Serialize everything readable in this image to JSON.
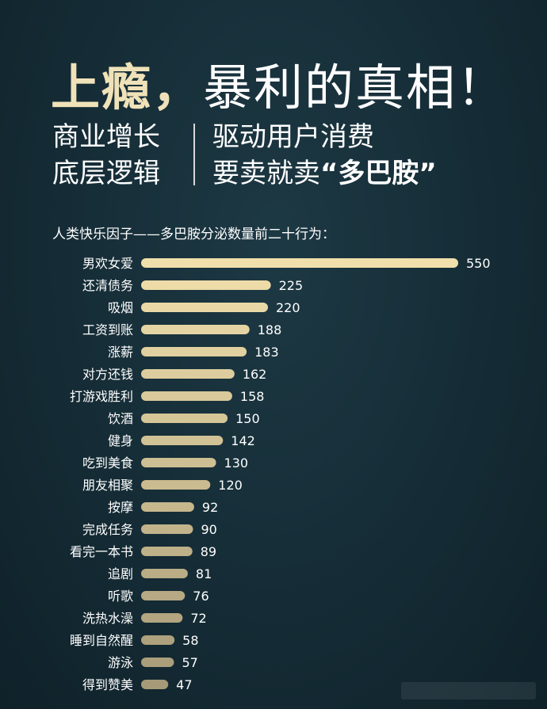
{
  "header": {
    "title_main": "上瘾，",
    "title_rest": "暴利的真相！",
    "subtitle_left_1": "商业增长",
    "subtitle_left_2": "底层逻辑",
    "subtitle_right_1": "驱动用户消费",
    "subtitle_right_2_prefix": "要卖就卖",
    "subtitle_right_2_highlight": "“多巴胺”",
    "caption": "人类快乐因子——多巴胺分泌数量前二十行为："
  },
  "chart_data": {
    "type": "bar",
    "orientation": "horizontal",
    "categories": [
      "男欢女爱",
      "还清债务",
      "吸烟",
      "工资到账",
      "涨薪",
      "对方还钱",
      "打游戏胜利",
      "饮酒",
      "健身",
      "吃到美食",
      "朋友相聚",
      "按摩",
      "完成任务",
      "看完一本书",
      "追剧",
      "听歌",
      "洗热水澡",
      "睡到自然醒",
      "游泳",
      "得到赞美"
    ],
    "values": [
      550,
      225,
      220,
      188,
      183,
      162,
      158,
      150,
      142,
      130,
      120,
      92,
      90,
      89,
      81,
      76,
      72,
      58,
      57,
      47
    ],
    "title": "",
    "xlabel": "",
    "ylabel": "",
    "xlim": [
      0,
      550
    ],
    "grid": false,
    "legend": "none",
    "colors": {
      "bar_top": "#f1dfab",
      "bar_bottom": "#a69a78"
    }
  }
}
